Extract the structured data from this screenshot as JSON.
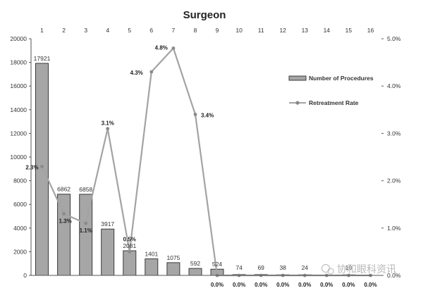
{
  "chart_data": {
    "type": "bar",
    "title": "Surgeon",
    "categories": [
      "1",
      "2",
      "3",
      "4",
      "5",
      "6",
      "7",
      "8",
      "9",
      "10",
      "11",
      "12",
      "13",
      "14",
      "15",
      "16"
    ],
    "series": [
      {
        "name": "Number of Procedures",
        "type": "bar",
        "axis": "left",
        "values": [
          17921,
          6862,
          6858,
          3917,
          2081,
          1401,
          1075,
          592,
          524,
          74,
          69,
          38,
          24,
          0,
          10,
          0
        ],
        "labels": [
          "17921",
          "6862",
          "6858",
          "3917",
          "2081",
          "1401",
          "1075",
          "592",
          "524",
          "74",
          "69",
          "38",
          "24",
          "",
          "10",
          ""
        ]
      },
      {
        "name": "Retreatment Rate",
        "type": "line",
        "axis": "right",
        "values": [
          2.3,
          1.3,
          1.1,
          3.1,
          0.5,
          4.3,
          4.8,
          3.4,
          0.0,
          0.0,
          0.0,
          0.0,
          0.0,
          0.0,
          0.0,
          0.0
        ],
        "labels": [
          "2.3%",
          "1.3%",
          "1.1%",
          "3.1%",
          "0.5%",
          "4.3%",
          "4.8%",
          "3.4%",
          "0.0%",
          "0.0%",
          "0.0%",
          "0.0%",
          "0.0%",
          "0.0%",
          "0.0%",
          "0.0%"
        ]
      }
    ],
    "y_left": {
      "min": 0,
      "max": 20000,
      "ticks": [
        0,
        2000,
        4000,
        6000,
        8000,
        10000,
        12000,
        14000,
        16000,
        18000,
        20000
      ],
      "tick_labels": [
        "0",
        "2000",
        "4000",
        "6000",
        "8000",
        "10000",
        "12000",
        "14000",
        "16000",
        "18000",
        "20000"
      ]
    },
    "y_right": {
      "min": 0,
      "max": 5,
      "ticks": [
        0,
        1,
        2,
        3,
        4,
        5
      ],
      "tick_labels": [
        "0.0%",
        "1.0%",
        "2.0%",
        "3.0%",
        "4.0%",
        "5.0%"
      ]
    },
    "x_axis_position": "top",
    "legend_position": "right",
    "grid": false
  },
  "watermark": "协和眼科资讯",
  "colors": {
    "bar_fill": "#a6a6a6",
    "bar_stroke": "#3a3a3a",
    "line": "#a3a3a3",
    "text": "#333333"
  }
}
